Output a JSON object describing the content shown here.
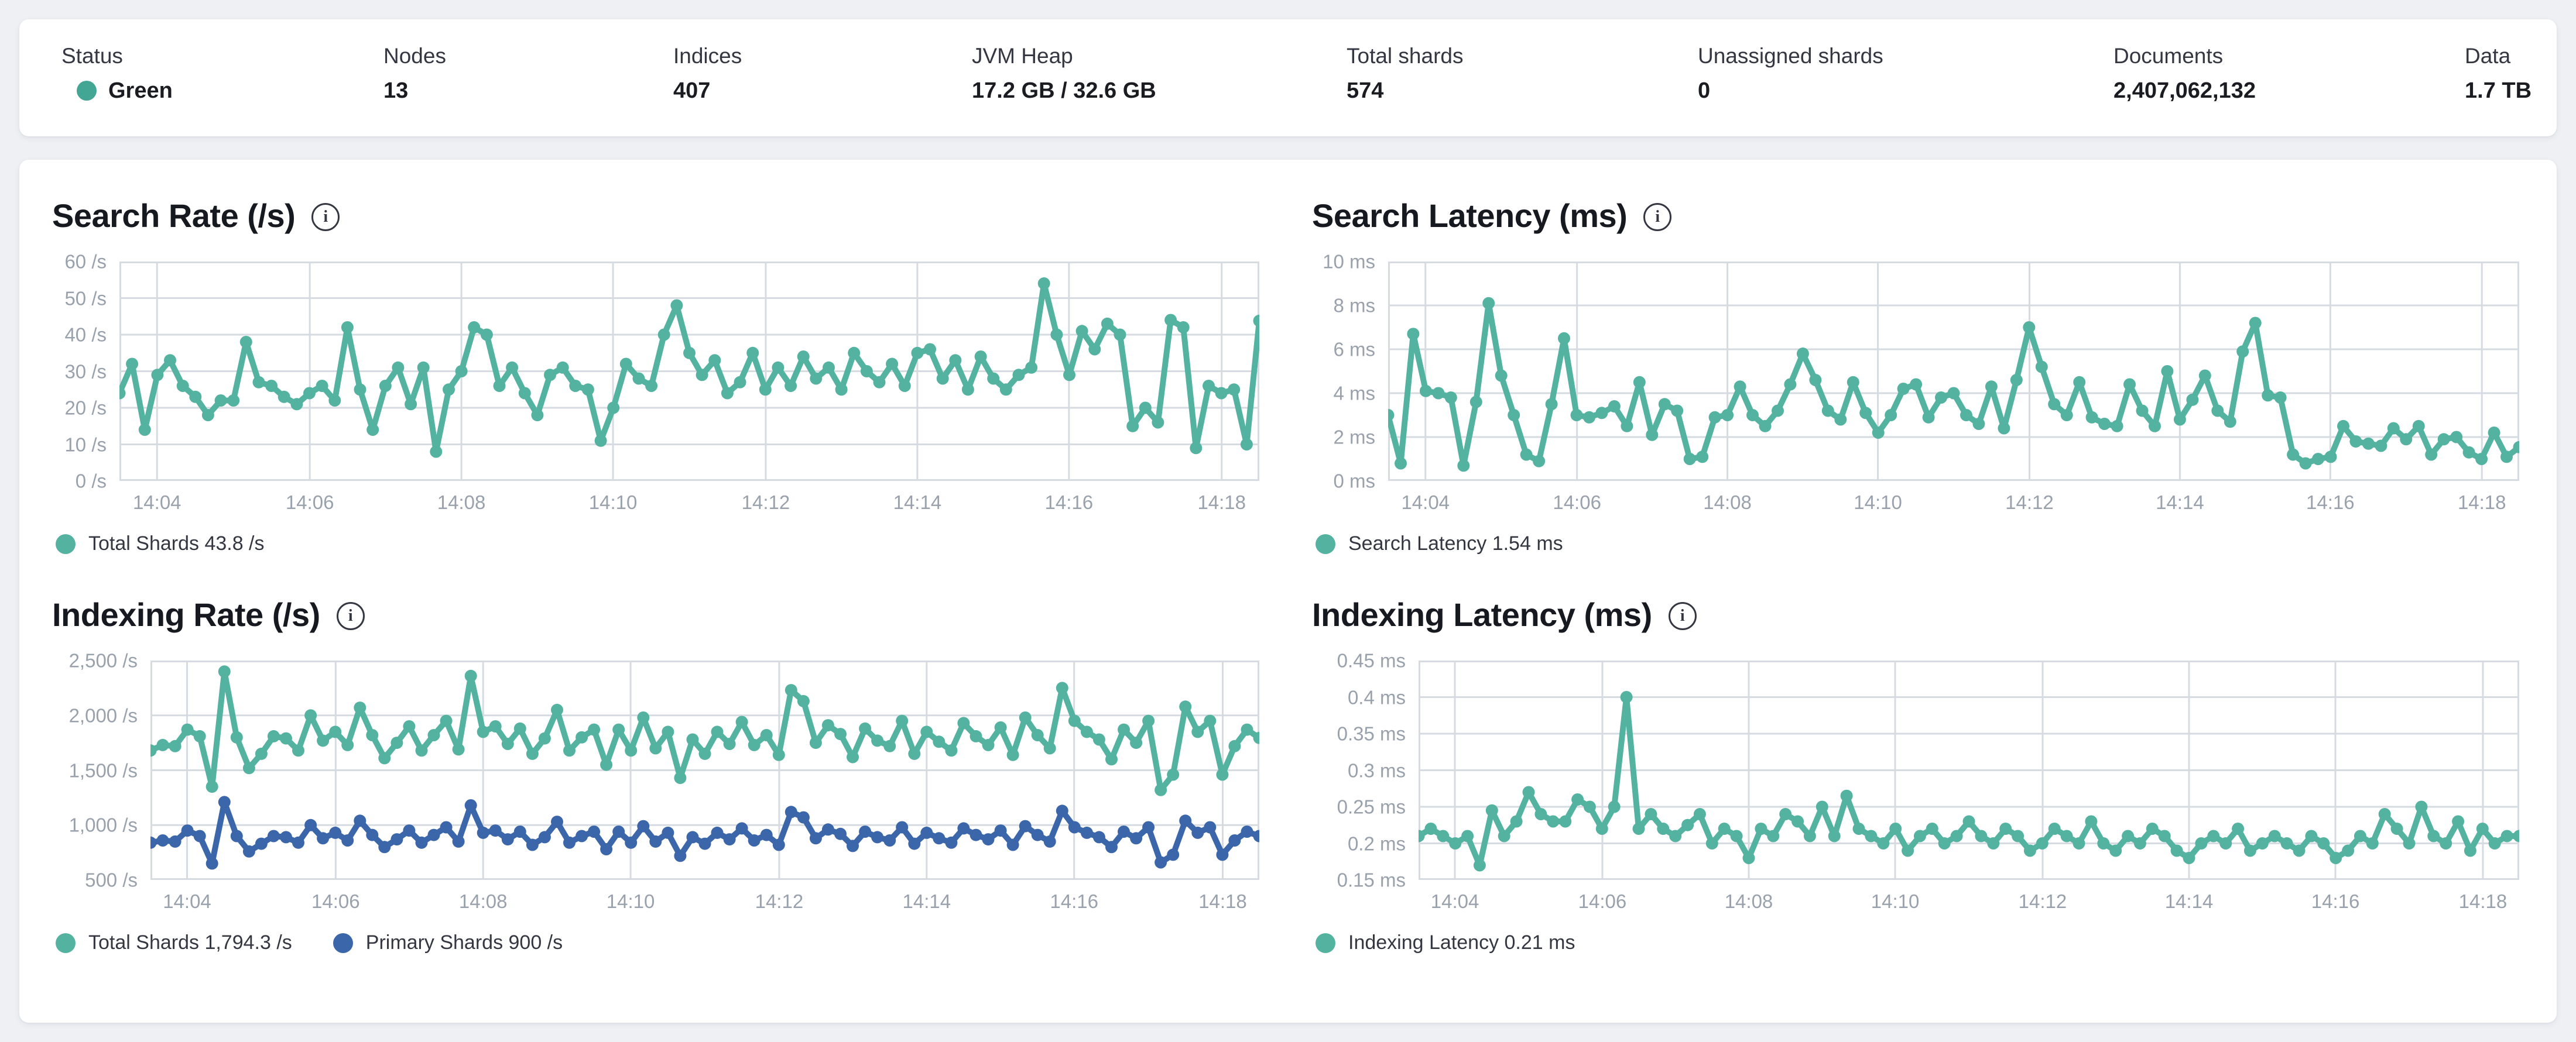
{
  "header_stats": {
    "items": [
      {
        "label": "Status",
        "value": "Green",
        "dot_color": "#43a694"
      },
      {
        "label": "Nodes",
        "value": "13"
      },
      {
        "label": "Indices",
        "value": "407"
      },
      {
        "label": "JVM Heap",
        "value": "17.2 GB / 32.6 GB"
      },
      {
        "label": "Total shards",
        "value": "574"
      },
      {
        "label": "Unassigned shards",
        "value": "0"
      },
      {
        "label": "Documents",
        "value": "2,407,062,132"
      },
      {
        "label": "Data",
        "value": "1.7 TB"
      }
    ]
  },
  "colors": {
    "teal": "#54b3a0",
    "blue": "#3b66a9",
    "status_green": "#43a694"
  },
  "chart_data": [
    {
      "type": "line",
      "title": "Search Rate (/s)",
      "ylabel": "/s",
      "ylim": [
        0,
        60
      ],
      "grid": true,
      "legend_position": "bottom",
      "y_ticks": [
        {
          "v": 60,
          "label": "60 /s"
        },
        {
          "v": 50,
          "label": "50 /s"
        },
        {
          "v": 40,
          "label": "40 /s"
        },
        {
          "v": 30,
          "label": "30 /s"
        },
        {
          "v": 20,
          "label": "20 /s"
        },
        {
          "v": 10,
          "label": "10 /s"
        },
        {
          "v": 0,
          "label": "0 /s"
        }
      ],
      "x_ticks": [
        {
          "f": 0.033,
          "label": "14:04"
        },
        {
          "f": 0.167,
          "label": "14:06"
        },
        {
          "f": 0.3,
          "label": "14:08"
        },
        {
          "f": 0.433,
          "label": "14:10"
        },
        {
          "f": 0.567,
          "label": "14:12"
        },
        {
          "f": 0.7,
          "label": "14:14"
        },
        {
          "f": 0.833,
          "label": "14:16"
        },
        {
          "f": 0.967,
          "label": "14:18"
        }
      ],
      "legend": [
        {
          "label": "Total Shards 43.8 /s",
          "color": "#54b3a0"
        }
      ],
      "series": [
        {
          "name": "Total Shards",
          "current": "43.8 /s",
          "color": "#54b3a0",
          "values": [
            24,
            32,
            14,
            29,
            33,
            26,
            23,
            18,
            22,
            22,
            38,
            27,
            26,
            23,
            21,
            24,
            26,
            22,
            42,
            25,
            14,
            26,
            31,
            21,
            31,
            8,
            25,
            30,
            42,
            40,
            26,
            31,
            24,
            18,
            29,
            31,
            26,
            25,
            11,
            20,
            32,
            28,
            26,
            40,
            48,
            35,
            29,
            33,
            24,
            27,
            35,
            25,
            31,
            26,
            34,
            28,
            31,
            25,
            35,
            30,
            27,
            32,
            26,
            35,
            36,
            28,
            33,
            25,
            34,
            28,
            25,
            29,
            31,
            54,
            40,
            29,
            41,
            36,
            43,
            40,
            15,
            20,
            16,
            44,
            42,
            9,
            26,
            24,
            25,
            10,
            43.8
          ]
        }
      ]
    },
    {
      "type": "line",
      "title": "Search Latency (ms)",
      "ylabel": "ms",
      "ylim": [
        0,
        10
      ],
      "grid": true,
      "legend_position": "bottom",
      "y_ticks": [
        {
          "v": 10,
          "label": "10 ms"
        },
        {
          "v": 8,
          "label": "8 ms"
        },
        {
          "v": 6,
          "label": "6 ms"
        },
        {
          "v": 4,
          "label": "4 ms"
        },
        {
          "v": 2,
          "label": "2 ms"
        },
        {
          "v": 0,
          "label": "0 ms"
        }
      ],
      "x_ticks": [
        {
          "f": 0.033,
          "label": "14:04"
        },
        {
          "f": 0.167,
          "label": "14:06"
        },
        {
          "f": 0.3,
          "label": "14:08"
        },
        {
          "f": 0.433,
          "label": "14:10"
        },
        {
          "f": 0.567,
          "label": "14:12"
        },
        {
          "f": 0.7,
          "label": "14:14"
        },
        {
          "f": 0.833,
          "label": "14:16"
        },
        {
          "f": 0.967,
          "label": "14:18"
        }
      ],
      "legend": [
        {
          "label": "Search Latency 1.54 ms",
          "color": "#54b3a0"
        }
      ],
      "series": [
        {
          "name": "Search Latency",
          "current": "1.54 ms",
          "color": "#54b3a0",
          "values": [
            3.0,
            0.8,
            6.7,
            4.1,
            4.0,
            3.8,
            0.7,
            3.6,
            8.1,
            4.8,
            3.0,
            1.2,
            0.9,
            3.5,
            6.5,
            3.0,
            2.9,
            3.1,
            3.4,
            2.5,
            4.5,
            2.1,
            3.5,
            3.2,
            1.0,
            1.1,
            2.9,
            3.0,
            4.3,
            3.0,
            2.5,
            3.2,
            4.4,
            5.8,
            4.6,
            3.2,
            2.8,
            4.5,
            3.1,
            2.2,
            3.0,
            4.2,
            4.4,
            2.9,
            3.8,
            4.0,
            3.0,
            2.6,
            4.3,
            2.4,
            4.6,
            7.0,
            5.2,
            3.5,
            3.0,
            4.5,
            2.9,
            2.6,
            2.5,
            4.4,
            3.2,
            2.5,
            5.0,
            2.8,
            3.7,
            4.8,
            3.2,
            2.7,
            5.9,
            7.2,
            3.9,
            3.8,
            1.2,
            0.8,
            1.0,
            1.1,
            2.5,
            1.8,
            1.7,
            1.6,
            2.4,
            1.9,
            2.5,
            1.2,
            1.9,
            2.0,
            1.3,
            1.0,
            2.2,
            1.1,
            1.54
          ]
        }
      ]
    },
    {
      "type": "line",
      "title": "Indexing Rate (/s)",
      "ylabel": "/s",
      "ylim": [
        500,
        2500
      ],
      "grid": true,
      "legend_position": "bottom",
      "y_ticks": [
        {
          "v": 2500,
          "label": "2,500 /s"
        },
        {
          "v": 2000,
          "label": "2,000 /s"
        },
        {
          "v": 1500,
          "label": "1,500 /s"
        },
        {
          "v": 1000,
          "label": "1,000 /s"
        },
        {
          "v": 500,
          "label": "500 /s"
        }
      ],
      "x_ticks": [
        {
          "f": 0.033,
          "label": "14:04"
        },
        {
          "f": 0.167,
          "label": "14:06"
        },
        {
          "f": 0.3,
          "label": "14:08"
        },
        {
          "f": 0.433,
          "label": "14:10"
        },
        {
          "f": 0.567,
          "label": "14:12"
        },
        {
          "f": 0.7,
          "label": "14:14"
        },
        {
          "f": 0.833,
          "label": "14:16"
        },
        {
          "f": 0.967,
          "label": "14:18"
        }
      ],
      "legend": [
        {
          "label": "Total Shards 1,794.3 /s",
          "color": "#54b3a0"
        },
        {
          "label": "Primary Shards 900 /s",
          "color": "#3b66a9"
        }
      ],
      "series": [
        {
          "name": "Total Shards",
          "current": "1,794.3 /s",
          "color": "#54b3a0",
          "values": [
            1680,
            1730,
            1720,
            1870,
            1810,
            1350,
            2400,
            1800,
            1520,
            1650,
            1810,
            1790,
            1680,
            2000,
            1770,
            1850,
            1730,
            2070,
            1820,
            1610,
            1750,
            1900,
            1680,
            1820,
            1950,
            1690,
            2360,
            1850,
            1900,
            1740,
            1880,
            1650,
            1790,
            2050,
            1680,
            1800,
            1870,
            1550,
            1870,
            1680,
            1980,
            1700,
            1850,
            1430,
            1780,
            1650,
            1850,
            1740,
            1940,
            1730,
            1820,
            1640,
            2230,
            2130,
            1750,
            1910,
            1830,
            1620,
            1880,
            1770,
            1720,
            1950,
            1650,
            1850,
            1760,
            1680,
            1930,
            1810,
            1730,
            1890,
            1640,
            1980,
            1820,
            1700,
            2250,
            1950,
            1850,
            1780,
            1600,
            1870,
            1750,
            1950,
            1320,
            1460,
            2080,
            1850,
            1950,
            1460,
            1720,
            1870,
            1794.3
          ]
        },
        {
          "name": "Primary Shards",
          "current": "900 /s",
          "color": "#3b66a9",
          "values": [
            840,
            860,
            850,
            950,
            900,
            650,
            1210,
            900,
            760,
            830,
            900,
            890,
            840,
            1000,
            880,
            930,
            860,
            1040,
            910,
            800,
            870,
            950,
            840,
            910,
            980,
            850,
            1180,
            930,
            950,
            870,
            940,
            820,
            890,
            1030,
            840,
            900,
            940,
            780,
            940,
            840,
            990,
            850,
            930,
            720,
            890,
            830,
            930,
            870,
            970,
            860,
            910,
            820,
            1120,
            1070,
            880,
            960,
            920,
            810,
            940,
            890,
            860,
            980,
            830,
            930,
            880,
            840,
            970,
            910,
            870,
            950,
            820,
            990,
            910,
            850,
            1130,
            980,
            930,
            890,
            800,
            940,
            880,
            980,
            660,
            730,
            1040,
            930,
            980,
            730,
            860,
            940,
            900
          ]
        }
      ]
    },
    {
      "type": "line",
      "title": "Indexing Latency (ms)",
      "ylabel": "ms",
      "ylim": [
        0.15,
        0.45
      ],
      "grid": true,
      "legend_position": "bottom",
      "y_ticks": [
        {
          "v": 0.45,
          "label": "0.45 ms"
        },
        {
          "v": 0.4,
          "label": "0.4 ms"
        },
        {
          "v": 0.35,
          "label": "0.35 ms"
        },
        {
          "v": 0.3,
          "label": "0.3 ms"
        },
        {
          "v": 0.25,
          "label": "0.25 ms"
        },
        {
          "v": 0.2,
          "label": "0.2 ms"
        },
        {
          "v": 0.15,
          "label": "0.15 ms"
        }
      ],
      "x_ticks": [
        {
          "f": 0.033,
          "label": "14:04"
        },
        {
          "f": 0.167,
          "label": "14:06"
        },
        {
          "f": 0.3,
          "label": "14:08"
        },
        {
          "f": 0.433,
          "label": "14:10"
        },
        {
          "f": 0.567,
          "label": "14:12"
        },
        {
          "f": 0.7,
          "label": "14:14"
        },
        {
          "f": 0.833,
          "label": "14:16"
        },
        {
          "f": 0.967,
          "label": "14:18"
        }
      ],
      "legend": [
        {
          "label": "Indexing Latency 0.21 ms",
          "color": "#54b3a0"
        }
      ],
      "series": [
        {
          "name": "Indexing Latency",
          "current": "0.21 ms",
          "color": "#54b3a0",
          "values": [
            0.21,
            0.22,
            0.21,
            0.2,
            0.21,
            0.17,
            0.245,
            0.21,
            0.23,
            0.27,
            0.24,
            0.23,
            0.23,
            0.26,
            0.25,
            0.22,
            0.25,
            0.4,
            0.22,
            0.24,
            0.22,
            0.21,
            0.225,
            0.24,
            0.2,
            0.22,
            0.21,
            0.18,
            0.22,
            0.21,
            0.24,
            0.23,
            0.21,
            0.25,
            0.21,
            0.265,
            0.22,
            0.21,
            0.2,
            0.22,
            0.19,
            0.21,
            0.22,
            0.2,
            0.21,
            0.23,
            0.21,
            0.2,
            0.22,
            0.21,
            0.19,
            0.2,
            0.22,
            0.21,
            0.2,
            0.23,
            0.2,
            0.19,
            0.21,
            0.2,
            0.22,
            0.21,
            0.19,
            0.18,
            0.2,
            0.21,
            0.2,
            0.22,
            0.19,
            0.2,
            0.21,
            0.2,
            0.19,
            0.21,
            0.2,
            0.18,
            0.19,
            0.21,
            0.2,
            0.24,
            0.22,
            0.2,
            0.25,
            0.21,
            0.2,
            0.23,
            0.19,
            0.22,
            0.2,
            0.21,
            0.21
          ]
        }
      ]
    }
  ]
}
